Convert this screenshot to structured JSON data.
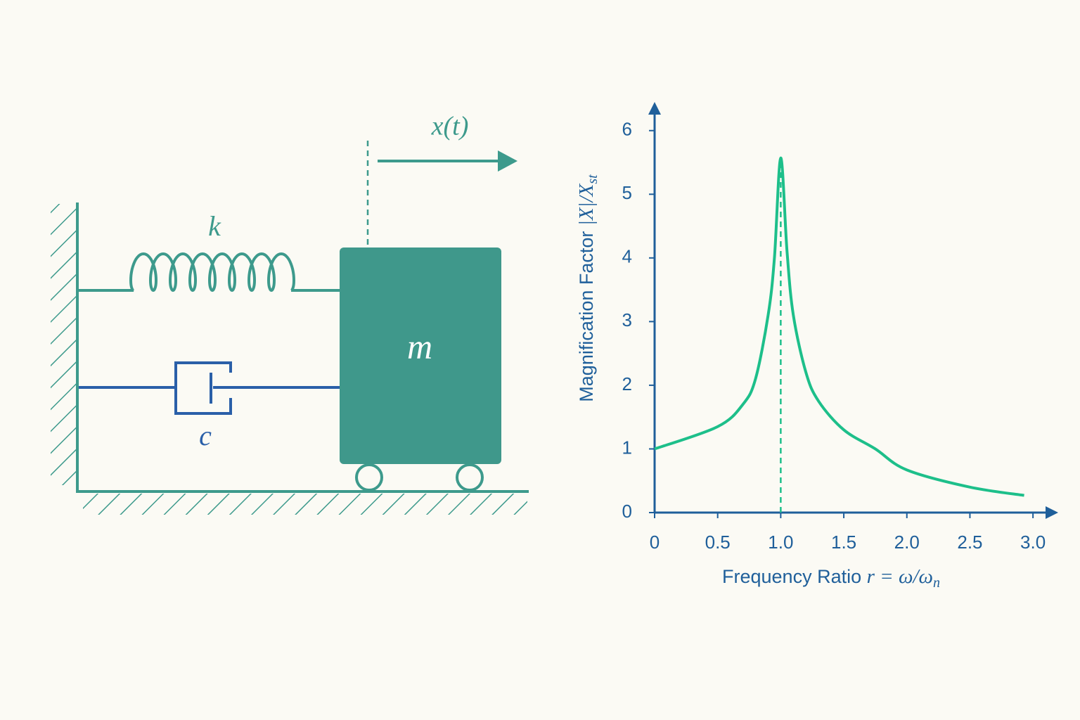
{
  "diagram": {
    "displacement_label": "x(t)",
    "spring_label": "k",
    "damper_label": "c",
    "mass_label": "m"
  },
  "chart_data": {
    "type": "line",
    "xlabel": "Frequency Ratio",
    "xlabel_math": "r = ω/ω",
    "xlabel_sub": "n",
    "ylabel": "Magnification Factor",
    "ylabel_math": "|X|/X",
    "ylabel_sub": "st",
    "x": [
      0,
      0.5,
      0.7,
      0.8,
      0.9,
      0.95,
      1.0,
      1.05,
      1.1,
      1.2,
      1.3,
      1.5,
      1.75,
      2.0,
      2.5,
      2.93
    ],
    "values": [
      1.0,
      1.35,
      1.7,
      2.1,
      3.1,
      4.0,
      5.57,
      4.1,
      3.1,
      2.2,
      1.75,
      1.3,
      1.0,
      0.67,
      0.4,
      0.27
    ],
    "color": "#1dbf8a",
    "axis_color": "#1f5f9a",
    "resonance_x": 1,
    "xlim": [
      0,
      3.2
    ],
    "ylim": [
      0,
      6.45
    ],
    "xticks": [
      0,
      0.5,
      {
        "value": 1,
        "label": "1.0"
      },
      1.5,
      {
        "value": 2,
        "label": "2.0"
      },
      2.5,
      {
        "value": 3,
        "label": "3.0"
      }
    ],
    "yticks": [
      0,
      1,
      2,
      3,
      4,
      5,
      6
    ]
  }
}
